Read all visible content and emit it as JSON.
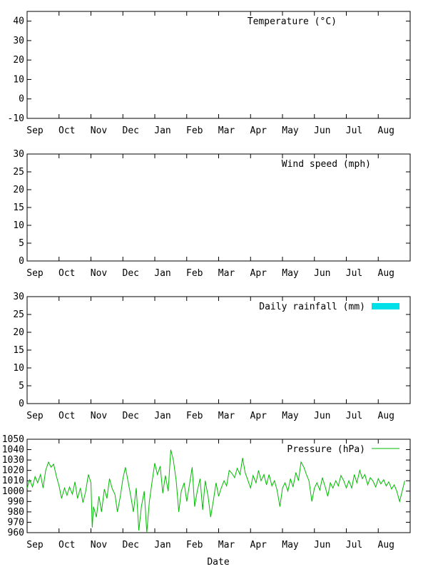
{
  "xlabel": "Date",
  "months": [
    "Sep",
    "Oct",
    "Nov",
    "Dec",
    "Jan",
    "Feb",
    "Mar",
    "Apr",
    "May",
    "Jun",
    "Jul",
    "Aug"
  ],
  "chart_data": [
    {
      "type": "line",
      "id": "temperature",
      "ylim": [
        -10,
        45
      ],
      "yticks": [
        -10,
        0,
        10,
        20,
        30,
        40
      ],
      "legend": {
        "label": "Temperature (°C)",
        "swatch": "none",
        "placement": "top-right"
      },
      "series": []
    },
    {
      "type": "line",
      "id": "wind",
      "ylim": [
        0,
        30
      ],
      "yticks": [
        0,
        5,
        10,
        15,
        20,
        25,
        30
      ],
      "legend": {
        "label": "Wind speed (mph)",
        "swatch": "none",
        "placement": "top-right"
      },
      "series": []
    },
    {
      "type": "bar",
      "id": "rainfall",
      "ylim": [
        0,
        30
      ],
      "yticks": [
        0,
        5,
        10,
        15,
        20,
        25,
        30
      ],
      "legend": {
        "label": "Daily rainfall (mm)",
        "swatch": "box",
        "color": "#00e0e8",
        "placement": "top-right"
      },
      "series": []
    },
    {
      "type": "line",
      "id": "pressure",
      "ylim": [
        960,
        1050
      ],
      "yticks": [
        960,
        970,
        980,
        990,
        1000,
        1010,
        1020,
        1030,
        1040,
        1050
      ],
      "legend": {
        "label": "Pressure (hPa)",
        "swatch": "line",
        "color": "#00bb00",
        "placement": "top-right"
      },
      "x_unit": "month index (0 = start of Sep)",
      "series": [
        {
          "color": "#00bb00",
          "points": [
            [
              0.0,
              1003
            ],
            [
              0.08,
              1011
            ],
            [
              0.17,
              1004
            ],
            [
              0.25,
              1014
            ],
            [
              0.33,
              1008
            ],
            [
              0.42,
              1016
            ],
            [
              0.5,
              1003
            ],
            [
              0.58,
              1020
            ],
            [
              0.67,
              1028
            ],
            [
              0.75,
              1023
            ],
            [
              0.83,
              1026
            ],
            [
              0.92,
              1014
            ],
            [
              1.0,
              1005
            ],
            [
              1.08,
              993
            ],
            [
              1.17,
              1003
            ],
            [
              1.25,
              996
            ],
            [
              1.33,
              1004
            ],
            [
              1.42,
              997
            ],
            [
              1.5,
              1009
            ],
            [
              1.58,
              993
            ],
            [
              1.67,
              1003
            ],
            [
              1.75,
              989
            ],
            [
              1.83,
              999
            ],
            [
              1.92,
              1016
            ],
            [
              2.0,
              1008
            ],
            [
              2.04,
              965
            ],
            [
              2.08,
              985
            ],
            [
              2.17,
              975
            ],
            [
              2.25,
              995
            ],
            [
              2.33,
              980
            ],
            [
              2.42,
              1002
            ],
            [
              2.5,
              993
            ],
            [
              2.58,
              1012
            ],
            [
              2.67,
              1002
            ],
            [
              2.75,
              997
            ],
            [
              2.83,
              980
            ],
            [
              2.92,
              995
            ],
            [
              3.0,
              1012
            ],
            [
              3.08,
              1023
            ],
            [
              3.17,
              1008
            ],
            [
              3.25,
              995
            ],
            [
              3.33,
              980
            ],
            [
              3.42,
              1003
            ],
            [
              3.5,
              962
            ],
            [
              3.58,
              985
            ],
            [
              3.67,
              1000
            ],
            [
              3.75,
              960
            ],
            [
              3.83,
              990
            ],
            [
              3.92,
              1010
            ],
            [
              4.0,
              1027
            ],
            [
              4.08,
              1016
            ],
            [
              4.17,
              1024
            ],
            [
              4.25,
              998
            ],
            [
              4.33,
              1015
            ],
            [
              4.42,
              1000
            ],
            [
              4.5,
              1040
            ],
            [
              4.58,
              1030
            ],
            [
              4.67,
              1010
            ],
            [
              4.75,
              980
            ],
            [
              4.83,
              1000
            ],
            [
              4.92,
              1008
            ],
            [
              5.0,
              990
            ],
            [
              5.08,
              1005
            ],
            [
              5.17,
              1023
            ],
            [
              5.25,
              985
            ],
            [
              5.33,
              1000
            ],
            [
              5.42,
              1012
            ],
            [
              5.5,
              982
            ],
            [
              5.58,
              1010
            ],
            [
              5.67,
              995
            ],
            [
              5.75,
              975
            ],
            [
              5.83,
              990
            ],
            [
              5.92,
              1008
            ],
            [
              6.0,
              995
            ],
            [
              6.08,
              1003
            ],
            [
              6.17,
              1010
            ],
            [
              6.25,
              1005
            ],
            [
              6.33,
              1020
            ],
            [
              6.42,
              1017
            ],
            [
              6.5,
              1013
            ],
            [
              6.58,
              1022
            ],
            [
              6.67,
              1016
            ],
            [
              6.75,
              1032
            ],
            [
              6.83,
              1018
            ],
            [
              6.92,
              1010
            ],
            [
              7.0,
              1003
            ],
            [
              7.08,
              1015
            ],
            [
              7.17,
              1008
            ],
            [
              7.25,
              1020
            ],
            [
              7.33,
              1010
            ],
            [
              7.42,
              1016
            ],
            [
              7.5,
              1006
            ],
            [
              7.58,
              1016
            ],
            [
              7.67,
              1005
            ],
            [
              7.75,
              1010
            ],
            [
              7.83,
              1001
            ],
            [
              7.92,
              985
            ],
            [
              8.0,
              1003
            ],
            [
              8.08,
              1008
            ],
            [
              8.17,
              1000
            ],
            [
              8.25,
              1012
            ],
            [
              8.33,
              1004
            ],
            [
              8.42,
              1018
            ],
            [
              8.5,
              1010
            ],
            [
              8.58,
              1028
            ],
            [
              8.67,
              1023
            ],
            [
              8.75,
              1016
            ],
            [
              8.83,
              1010
            ],
            [
              8.92,
              990
            ],
            [
              9.0,
              1003
            ],
            [
              9.08,
              1008
            ],
            [
              9.17,
              1001
            ],
            [
              9.25,
              1013
            ],
            [
              9.33,
              1005
            ],
            [
              9.42,
              995
            ],
            [
              9.5,
              1008
            ],
            [
              9.58,
              1003
            ],
            [
              9.67,
              1010
            ],
            [
              9.75,
              1005
            ],
            [
              9.83,
              1015
            ],
            [
              9.92,
              1010
            ],
            [
              10.0,
              1003
            ],
            [
              10.08,
              1010
            ],
            [
              10.17,
              1003
            ],
            [
              10.25,
              1016
            ],
            [
              10.33,
              1008
            ],
            [
              10.42,
              1020
            ],
            [
              10.5,
              1012
            ],
            [
              10.58,
              1016
            ],
            [
              10.67,
              1006
            ],
            [
              10.75,
              1013
            ],
            [
              10.83,
              1010
            ],
            [
              10.92,
              1004
            ],
            [
              11.0,
              1012
            ],
            [
              11.08,
              1007
            ],
            [
              11.17,
              1011
            ],
            [
              11.25,
              1005
            ],
            [
              11.33,
              1009
            ],
            [
              11.42,
              1002
            ],
            [
              11.5,
              1006
            ],
            [
              11.58,
              1000
            ],
            [
              11.67,
              990
            ],
            [
              11.75,
              1000
            ],
            [
              11.83,
              1010
            ]
          ]
        }
      ]
    }
  ]
}
